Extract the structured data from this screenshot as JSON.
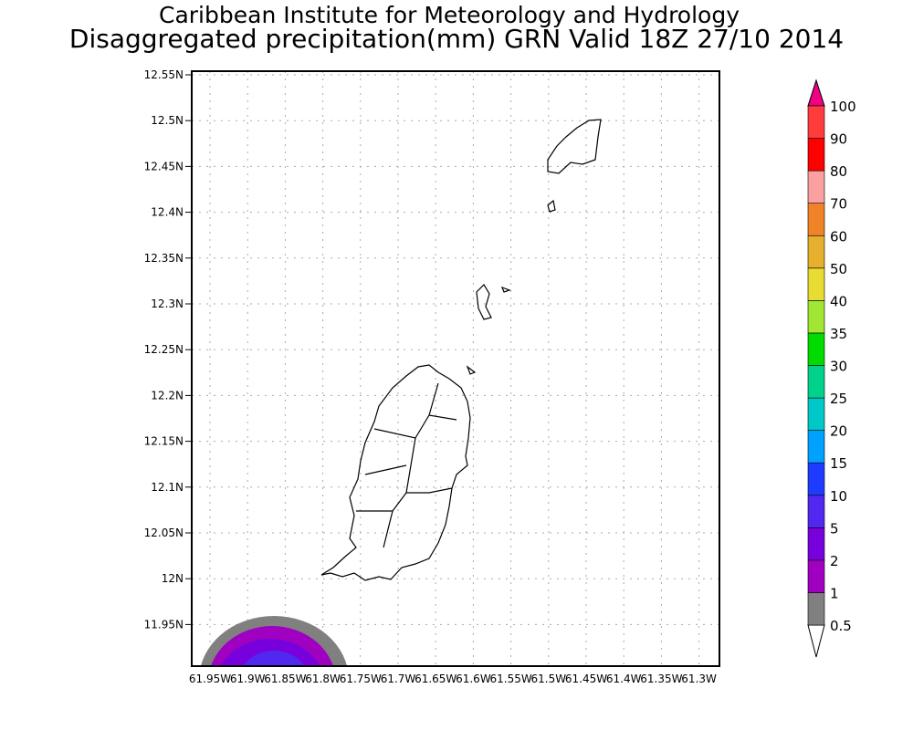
{
  "header": {
    "title_line1": "Caribbean Institute for Meteorology and Hydrology",
    "title_line2": "Disaggregated precipitation(mm) GRN Valid 18Z 27/10 2014"
  },
  "chart_data": {
    "type": "heatmap",
    "title": "Disaggregated precipitation(mm) GRN Valid 18Z 27/10 2014",
    "xlabel": "",
    "ylabel": "",
    "x_ticks": [
      "61.95W",
      "61.9W",
      "61.85W",
      "61.8W",
      "61.75W",
      "61.7W",
      "61.65W",
      "61.6W",
      "61.55W",
      "61.5W",
      "61.45W",
      "61.4W",
      "61.35W",
      "61.3W"
    ],
    "y_ticks": [
      "12.55N",
      "12.5N",
      "12.45N",
      "12.4N",
      "12.35N",
      "12.3N",
      "12.25N",
      "12.2N",
      "12.15N",
      "12.1N",
      "12.05N",
      "12N",
      "11.95N"
    ],
    "xlim": [
      -61.975,
      -61.27
    ],
    "ylim": [
      11.905,
      12.555
    ],
    "grid": true,
    "colorbar": {
      "levels": [
        "0.5",
        "1",
        "2",
        "5",
        "10",
        "15",
        "20",
        "25",
        "30",
        "35",
        "40",
        "50",
        "60",
        "70",
        "80",
        "90",
        "100"
      ],
      "colors": [
        "#ffffff",
        "#808080",
        "#a000c0",
        "#7800dc",
        "#5028f0",
        "#1e3cff",
        "#00a0ff",
        "#00c8c8",
        "#00d28c",
        "#00dc00",
        "#a0e632",
        "#e6dc32",
        "#e6af2d",
        "#f08228",
        "#faa0a0",
        "#ff0000",
        "#ff3c3c",
        "#f00082"
      ],
      "placement": "right"
    },
    "features": [
      {
        "name": "precipitation-cell",
        "location": "southwest corner",
        "max_level": "5-10 mm"
      }
    ]
  }
}
